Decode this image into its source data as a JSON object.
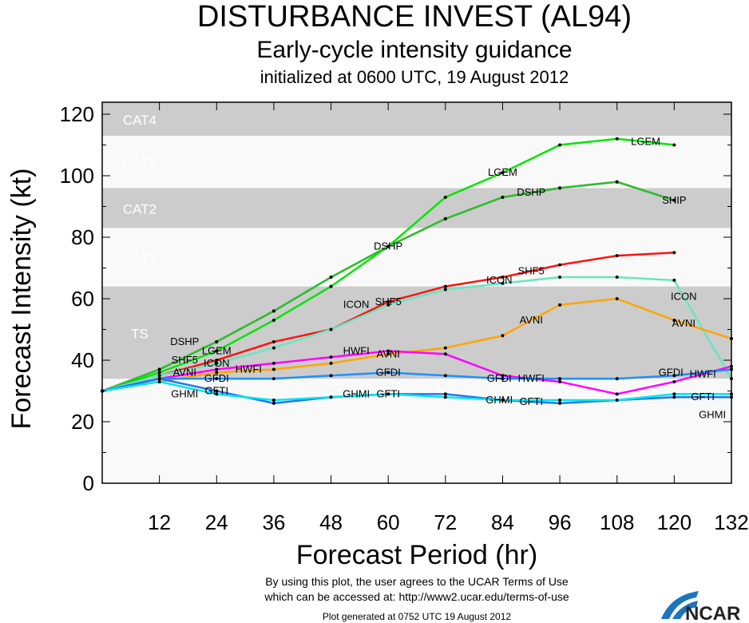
{
  "chart_data": {
    "type": "line",
    "title": "DISTURBANCE INVEST (AL94)",
    "subtitle": "Early-cycle intensity guidance",
    "subtitle2": "initialized at 0600 UTC, 19 August 2012",
    "xlabel": "Forecast Period (hr)",
    "ylabel": "Forecast Intensity (kt)",
    "xlim": [
      0,
      132
    ],
    "ylim": [
      0,
      120
    ],
    "xticks": [
      12,
      24,
      36,
      48,
      60,
      72,
      84,
      96,
      108,
      120,
      132
    ],
    "yticks": [
      0,
      20,
      40,
      60,
      80,
      100,
      120
    ],
    "bands": [
      {
        "label": "TS",
        "from": 34,
        "to": 64,
        "color": "#cccccc"
      },
      {
        "label": "CAT1",
        "from": 64,
        "to": 83,
        "color": "#f9f9f9"
      },
      {
        "label": "CAT2",
        "from": 83,
        "to": 96,
        "color": "#cccccc"
      },
      {
        "label": "CAT3",
        "from": 96,
        "to": 113,
        "color": "#f9f9f9"
      },
      {
        "label": "CAT4",
        "from": 113,
        "to": 120,
        "color": "#cccccc"
      }
    ],
    "x": [
      0,
      12,
      24,
      36,
      48,
      60,
      72,
      84,
      96,
      108,
      120,
      132
    ],
    "series": [
      {
        "name": "LGEM",
        "color": "#00e600",
        "values": [
          30,
          36,
          43,
          53,
          64,
          77,
          93,
          101,
          110,
          112,
          110,
          null
        ],
        "label_at": [
          24,
          84,
          114
        ]
      },
      {
        "name": "SHIP",
        "color": "#33bb33",
        "values": [
          30,
          37,
          46,
          56,
          67,
          77,
          86,
          93,
          96,
          98,
          92,
          null
        ],
        "label_at": [
          120
        ]
      },
      {
        "name": "DSHP",
        "color": "#33bb33",
        "values": [
          30,
          37,
          46,
          56,
          67,
          77,
          86,
          93,
          96,
          98,
          92,
          null
        ],
        "label_at": [
          24,
          60,
          90
        ]
      },
      {
        "name": "SHF5",
        "color": "#ff1111",
        "values": [
          30,
          35,
          40,
          46,
          50,
          59,
          64,
          67,
          71,
          74,
          75,
          null
        ],
        "label_at": [
          24,
          60,
          90
        ]
      },
      {
        "name": "ICON",
        "color": "#66e6c0",
        "values": [
          30,
          35,
          39,
          44,
          50,
          58,
          63,
          65,
          67,
          67,
          66,
          34
        ],
        "label_at": [
          24,
          60,
          90,
          122
        ]
      },
      {
        "name": "AVNI",
        "color": "#ffa500",
        "values": [
          30,
          33,
          36,
          37,
          39,
          42,
          44,
          48,
          58,
          60,
          53,
          47
        ],
        "label_at": [
          24,
          60,
          90,
          122
        ]
      },
      {
        "name": "HWFI",
        "color": "#ff00ff",
        "values": [
          30,
          34,
          37,
          39,
          41,
          43,
          42,
          35,
          33,
          29,
          33,
          38
        ],
        "label_at": [
          24,
          60,
          90,
          126
        ]
      },
      {
        "name": "GFDI",
        "color": "#1e8fff",
        "values": [
          30,
          34,
          34,
          34,
          35,
          36,
          35,
          34,
          34,
          34,
          35,
          37
        ],
        "label_at": [
          24,
          60,
          90,
          126
        ]
      },
      {
        "name": "GFTI",
        "color": "#2277ee",
        "values": [
          30,
          34,
          30,
          26,
          28,
          29,
          29,
          27,
          26,
          27,
          28,
          28
        ],
        "label_at": [
          24,
          60,
          90,
          126
        ]
      },
      {
        "name": "GHMI",
        "color": "#00e5ee",
        "values": [
          30,
          33,
          29,
          27,
          28,
          29,
          28,
          27,
          27,
          27,
          29,
          29
        ],
        "label_at": [
          24,
          60,
          90,
          128
        ]
      }
    ]
  },
  "footer": {
    "line1": "By using this plot, the user agrees to the UCAR Terms of Use",
    "line2": "which can be accessed at: http://www2.ucar.edu/terms-of-use",
    "generated": "Plot generated at 0752 UTC   19 August 2012",
    "logo": "NCAR"
  }
}
